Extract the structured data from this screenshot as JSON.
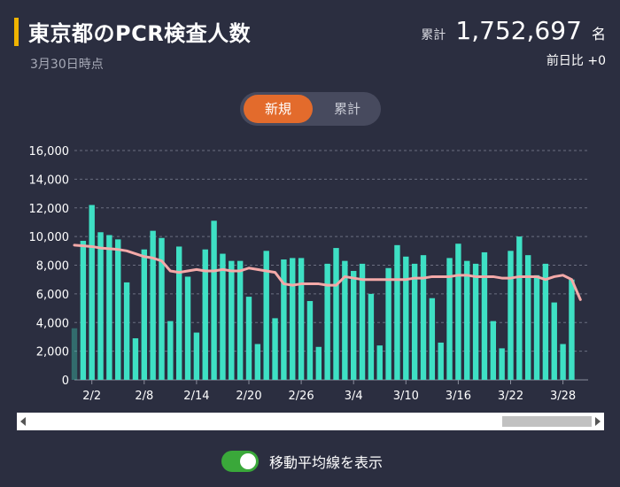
{
  "header": {
    "title": "東京都のPCR検査人数",
    "subtitle": "3月30日時点",
    "total_label": "累計",
    "total_value": "1,752,697",
    "total_unit": "名",
    "diff_text": "前日比 +0"
  },
  "toggle": {
    "new_label": "新規",
    "cumulative_label": "累計",
    "selected": "新規"
  },
  "moving_average": {
    "label": "移動平均線を表示",
    "enabled": true
  },
  "colors": {
    "bar": "#3ee0c4",
    "line": "#f4a9a8",
    "accent": "#e36b2c",
    "title_bar": "#f0b400"
  },
  "chart_data": {
    "type": "bar",
    "ylim": [
      0,
      16000
    ],
    "yticks": [
      0,
      2000,
      4000,
      6000,
      8000,
      10000,
      12000,
      14000,
      16000
    ],
    "ytick_labels": [
      "0",
      "2,000",
      "4,000",
      "6,000",
      "8,000",
      "10,000",
      "12,000",
      "14,000",
      "16,000"
    ],
    "xtick_labels": [
      "2/2",
      "2/8",
      "2/14",
      "2/20",
      "2/26",
      "3/4",
      "3/10",
      "3/16",
      "3/22",
      "3/28"
    ],
    "xtick_dates": [
      "2/2",
      "2/8",
      "2/14",
      "2/20",
      "2/26",
      "3/4",
      "3/10",
      "3/16",
      "3/22",
      "3/28"
    ],
    "grid": true,
    "categories": [
      "1/31",
      "2/1",
      "2/2",
      "2/3",
      "2/4",
      "2/5",
      "2/6",
      "2/7",
      "2/8",
      "2/9",
      "2/10",
      "2/11",
      "2/12",
      "2/13",
      "2/14",
      "2/15",
      "2/16",
      "2/17",
      "2/18",
      "2/19",
      "2/20",
      "2/21",
      "2/22",
      "2/23",
      "2/24",
      "2/25",
      "2/26",
      "2/27",
      "2/28",
      "3/1",
      "3/2",
      "3/3",
      "3/4",
      "3/5",
      "3/6",
      "3/7",
      "3/8",
      "3/9",
      "3/10",
      "3/11",
      "3/12",
      "3/13",
      "3/14",
      "3/15",
      "3/16",
      "3/17",
      "3/18",
      "3/19",
      "3/20",
      "3/21",
      "3/22",
      "3/23",
      "3/24",
      "3/25",
      "3/26",
      "3/27",
      "3/28",
      "3/29",
      "3/30"
    ],
    "values": [
      3600,
      9700,
      12200,
      10300,
      10100,
      9800,
      6800,
      2900,
      9100,
      10400,
      9900,
      4100,
      9300,
      7200,
      3300,
      9100,
      11100,
      8800,
      8300,
      8300,
      5800,
      2500,
      9000,
      4300,
      8400,
      8500,
      8500,
      5500,
      2300,
      8100,
      9200,
      8300,
      7600,
      8100,
      6000,
      2400,
      7800,
      9400,
      8600,
      8100,
      8700,
      5700,
      2600,
      8500,
      9500,
      8300,
      8100,
      8900,
      4100,
      2200,
      9000,
      10000,
      8700,
      7300,
      8100,
      5400,
      2500,
      7000,
      0
    ],
    "moving_average": [
      9400,
      9350,
      9300,
      9200,
      9150,
      9100,
      9000,
      8800,
      8600,
      8500,
      8300,
      7600,
      7500,
      7600,
      7700,
      7600,
      7600,
      7700,
      7600,
      7600,
      7800,
      7700,
      7600,
      7500,
      6700,
      6600,
      6700,
      6700,
      6700,
      6600,
      6600,
      7200,
      7100,
      7000,
      7000,
      7000,
      7000,
      7000,
      7000,
      7100,
      7100,
      7200,
      7200,
      7200,
      7300,
      7300,
      7200,
      7200,
      7200,
      7100,
      7100,
      7200,
      7200,
      7200,
      7000,
      7200,
      7300,
      7000,
      5600
    ]
  }
}
